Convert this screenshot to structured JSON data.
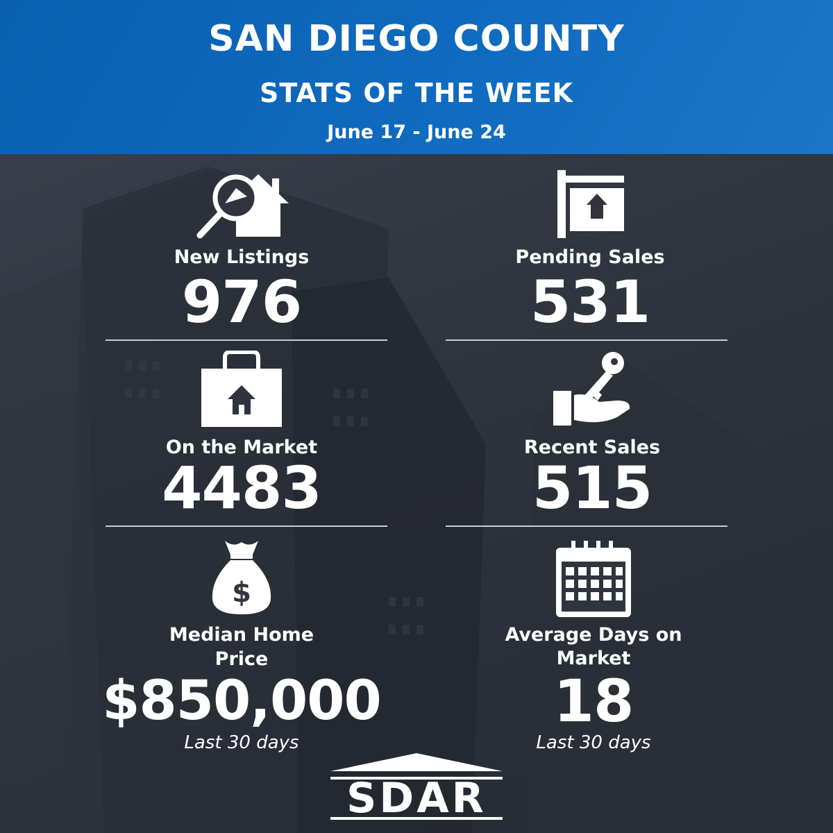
{
  "header": {
    "title": "SAN DIEGO COUNTY",
    "subtitle": "STATS OF THE WEEK",
    "date_range": "June 17 - June 24"
  },
  "stats": {
    "new_listings": {
      "label": "New Listings",
      "value": "976",
      "icon": "house-search-icon"
    },
    "pending_sales": {
      "label": "Pending Sales",
      "value": "531",
      "icon": "real-estate-sign-icon"
    },
    "on_market": {
      "label": "On the Market",
      "value": "4483",
      "icon": "house-bag-icon"
    },
    "recent_sales": {
      "label": "Recent Sales",
      "value": "515",
      "icon": "hand-key-icon"
    },
    "median_price": {
      "label_line1": "Median Home",
      "label_line2": "Price",
      "value": "$850,000",
      "note": "Last 30 days",
      "icon": "money-bag-icon"
    },
    "avg_days": {
      "label_line1": "Average Days on",
      "label_line2": "Market",
      "value": "18",
      "note": "Last 30 days",
      "icon": "calendar-icon"
    }
  },
  "logo": {
    "text": "SDAR"
  },
  "colors": {
    "header_blue": "#0f6bc0",
    "background": "#2f343e",
    "text": "#ffffff"
  }
}
